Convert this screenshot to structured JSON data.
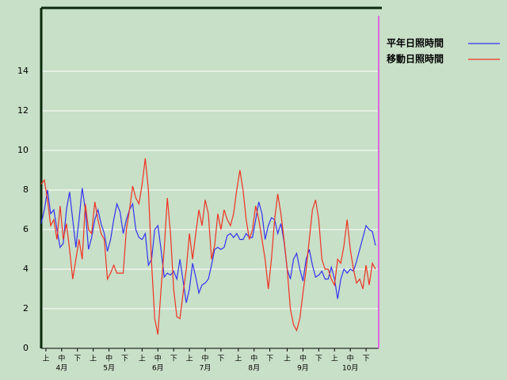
{
  "chart_data": {
    "type": "line",
    "x": [
      0,
      2,
      4,
      6,
      8,
      10,
      12,
      14,
      16,
      18,
      20,
      22,
      24,
      26,
      28,
      30,
      32,
      34,
      36,
      38,
      40,
      42,
      44,
      46,
      48,
      50,
      52,
      54,
      56,
      58,
      60,
      62,
      64,
      66,
      68,
      70,
      72,
      74,
      76,
      78,
      80,
      82,
      84,
      86,
      88,
      90,
      92,
      94,
      96,
      98,
      100,
      102,
      104,
      106,
      108,
      110,
      112,
      114,
      116,
      118,
      120,
      122,
      124,
      126,
      128,
      130,
      132,
      134,
      136,
      138,
      140,
      142,
      144,
      146,
      148,
      150,
      152,
      154,
      156,
      158,
      160,
      162,
      164,
      166,
      168,
      170,
      172,
      174,
      176,
      178,
      180,
      182,
      184,
      186,
      188,
      190,
      192,
      194,
      196,
      198,
      200,
      202,
      204,
      206,
      208,
      210,
      212
    ],
    "series": [
      {
        "name": "平年日照時間",
        "color": "#3333ee",
        "values": [
          6.3,
          7.0,
          8.0,
          6.8,
          7.0,
          6.0,
          5.1,
          5.3,
          7.0,
          7.9,
          6.5,
          5.1,
          6.5,
          8.1,
          7.0,
          5.0,
          5.6,
          6.5,
          7.0,
          6.3,
          5.8,
          4.9,
          5.5,
          6.5,
          7.3,
          6.9,
          5.8,
          6.5,
          7.0,
          7.3,
          6.0,
          5.6,
          5.5,
          5.8,
          4.2,
          4.5,
          6.0,
          6.2,
          5.0,
          3.6,
          3.8,
          3.7,
          3.9,
          3.5,
          4.5,
          3.4,
          2.3,
          3.0,
          4.3,
          3.6,
          2.8,
          3.2,
          3.3,
          3.5,
          4.2,
          5.0,
          5.1,
          5.0,
          5.1,
          5.7,
          5.8,
          5.6,
          5.8,
          5.5,
          5.5,
          5.8,
          5.6,
          5.6,
          6.5,
          7.4,
          6.8,
          5.5,
          6.2,
          6.6,
          6.5,
          5.8,
          6.3,
          5.4,
          4.0,
          3.5,
          4.5,
          4.8,
          4.0,
          3.4,
          4.5,
          5.0,
          4.2,
          3.6,
          3.7,
          3.9,
          3.5,
          3.5,
          4.1,
          3.5,
          2.5,
          3.5,
          4.0,
          3.8,
          4.0,
          3.9,
          4.4,
          5.0,
          5.6,
          6.2,
          6.0,
          5.9,
          5.2
        ]
      },
      {
        "name": "移動日照時間",
        "color": "#ee3322",
        "values": [
          8.3,
          8.5,
          7.5,
          6.2,
          6.5,
          5.5,
          7.2,
          5.5,
          6.3,
          5.0,
          3.5,
          4.5,
          5.5,
          4.5,
          7.3,
          6.0,
          5.8,
          7.4,
          6.5,
          5.8,
          5.5,
          3.5,
          3.8,
          4.2,
          3.8,
          3.8,
          3.8,
          6.0,
          7.0,
          8.2,
          7.6,
          7.3,
          8.3,
          9.6,
          8.0,
          4.3,
          1.5,
          0.7,
          3.0,
          5.0,
          7.6,
          5.8,
          3.0,
          1.6,
          1.5,
          2.8,
          4.0,
          5.8,
          4.5,
          5.8,
          7.0,
          6.2,
          7.5,
          6.8,
          4.5,
          5.2,
          6.8,
          6.0,
          7.0,
          6.5,
          6.2,
          6.8,
          8.0,
          9.0,
          8.0,
          6.5,
          5.5,
          6.0,
          7.2,
          6.5,
          5.5,
          4.5,
          3.0,
          4.5,
          6.5,
          7.8,
          6.8,
          5.5,
          4.0,
          2.0,
          1.2,
          0.9,
          1.5,
          2.8,
          4.0,
          5.5,
          7.0,
          7.5,
          6.5,
          4.5,
          4.0,
          4.0,
          3.5,
          3.2,
          4.5,
          4.3,
          5.2,
          6.5,
          5.0,
          4.0,
          3.3,
          3.5,
          3.0,
          4.2,
          3.2,
          4.3,
          4.0
        ]
      }
    ],
    "xlim": [
      0,
      214
    ],
    "xticks": [
      {
        "value": 3,
        "label": "上"
      },
      {
        "value": 13,
        "label": "中"
      },
      {
        "value": 23,
        "label": "下"
      },
      {
        "value": 33,
        "label": "上"
      },
      {
        "value": 43,
        "label": "中"
      },
      {
        "value": 53,
        "label": "下"
      },
      {
        "value": 64,
        "label": "上"
      },
      {
        "value": 74,
        "label": "中"
      },
      {
        "value": 84,
        "label": "下"
      },
      {
        "value": 94,
        "label": "上"
      },
      {
        "value": 104,
        "label": "中"
      },
      {
        "value": 114,
        "label": "下"
      },
      {
        "value": 125,
        "label": "上"
      },
      {
        "value": 135,
        "label": "中"
      },
      {
        "value": 145,
        "label": "下"
      },
      {
        "value": 156,
        "label": "上"
      },
      {
        "value": 166,
        "label": "中"
      },
      {
        "value": 176,
        "label": "下"
      },
      {
        "value": 186,
        "label": "上"
      },
      {
        "value": 196,
        "label": "中"
      },
      {
        "value": 206,
        "label": "下"
      }
    ],
    "month_labels": [
      {
        "value": 13,
        "label": "4月"
      },
      {
        "value": 43,
        "label": "5月"
      },
      {
        "value": 74,
        "label": "6月"
      },
      {
        "value": 104,
        "label": "7月"
      },
      {
        "value": 135,
        "label": "8月"
      },
      {
        "value": 166,
        "label": "9月"
      },
      {
        "value": 196,
        "label": "10月"
      }
    ],
    "ylim": [
      0,
      17.2
    ],
    "yticks": [
      0,
      2,
      4,
      6,
      8,
      10,
      12,
      14
    ],
    "grid": true,
    "legend": "upper right"
  }
}
